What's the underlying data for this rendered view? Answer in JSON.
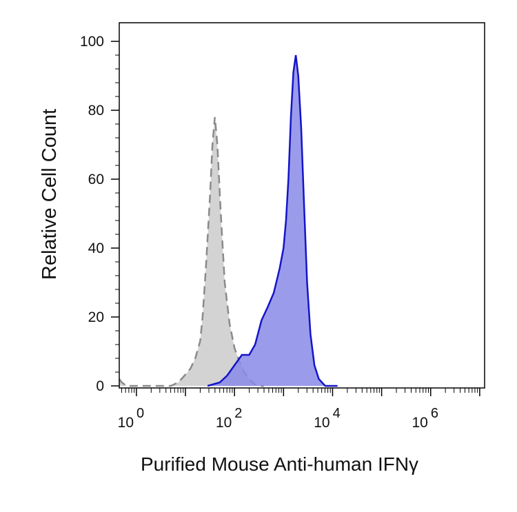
{
  "chart_data": {
    "type": "area",
    "title": "",
    "xlabel": "Purified Mouse Anti-human IFNγ",
    "ylabel": "Relative Cell Count",
    "x_scale": "log10",
    "xlim_exponent": [
      -0.35,
      7.1
    ],
    "ylim": [
      0,
      100
    ],
    "grid": false,
    "y_ticks": [
      0,
      20,
      40,
      60,
      80,
      100
    ],
    "x_ticks": [
      {
        "base": "10",
        "exponent": "0",
        "value_exponent": 0
      },
      {
        "base": "10",
        "exponent": "2",
        "value_exponent": 2
      },
      {
        "base": "10",
        "exponent": "4",
        "value_exponent": 4
      },
      {
        "base": "10",
        "exponent": "6",
        "value_exponent": 6
      }
    ],
    "series": [
      {
        "role": "control",
        "color": "#d3d3d3",
        "line_color": "#8a8a8a",
        "line_style": "dashed",
        "points": [
          [
            -0.35,
            2
          ],
          [
            -0.3,
            1
          ],
          [
            -0.2,
            0
          ],
          [
            0.7,
            0
          ],
          [
            0.85,
            1
          ],
          [
            0.95,
            2.5
          ],
          [
            1.1,
            5
          ],
          [
            1.2,
            8
          ],
          [
            1.3,
            13
          ],
          [
            1.35,
            20
          ],
          [
            1.42,
            35
          ],
          [
            1.5,
            55
          ],
          [
            1.55,
            70
          ],
          [
            1.6,
            78
          ],
          [
            1.65,
            70
          ],
          [
            1.72,
            50
          ],
          [
            1.8,
            30
          ],
          [
            1.9,
            18
          ],
          [
            2.0,
            11
          ],
          [
            2.1,
            7
          ],
          [
            2.2,
            4
          ],
          [
            2.3,
            2
          ],
          [
            2.45,
            0
          ],
          [
            2.6,
            0
          ]
        ]
      },
      {
        "role": "stained",
        "color": "#8a8ae8",
        "line_color": "#1414c8",
        "line_style": "solid",
        "points": [
          [
            1.45,
            0
          ],
          [
            1.7,
            1
          ],
          [
            1.85,
            3
          ],
          [
            2.0,
            6
          ],
          [
            2.15,
            9
          ],
          [
            2.3,
            9
          ],
          [
            2.42,
            12
          ],
          [
            2.55,
            19
          ],
          [
            2.68,
            23
          ],
          [
            2.8,
            27
          ],
          [
            2.92,
            34
          ],
          [
            3.0,
            40
          ],
          [
            3.05,
            48
          ],
          [
            3.1,
            60
          ],
          [
            3.15,
            78
          ],
          [
            3.2,
            91
          ],
          [
            3.25,
            96
          ],
          [
            3.3,
            90
          ],
          [
            3.36,
            75
          ],
          [
            3.42,
            52
          ],
          [
            3.48,
            30
          ],
          [
            3.55,
            15
          ],
          [
            3.63,
            6
          ],
          [
            3.72,
            2
          ],
          [
            3.85,
            0
          ],
          [
            4.1,
            0
          ]
        ]
      }
    ]
  }
}
